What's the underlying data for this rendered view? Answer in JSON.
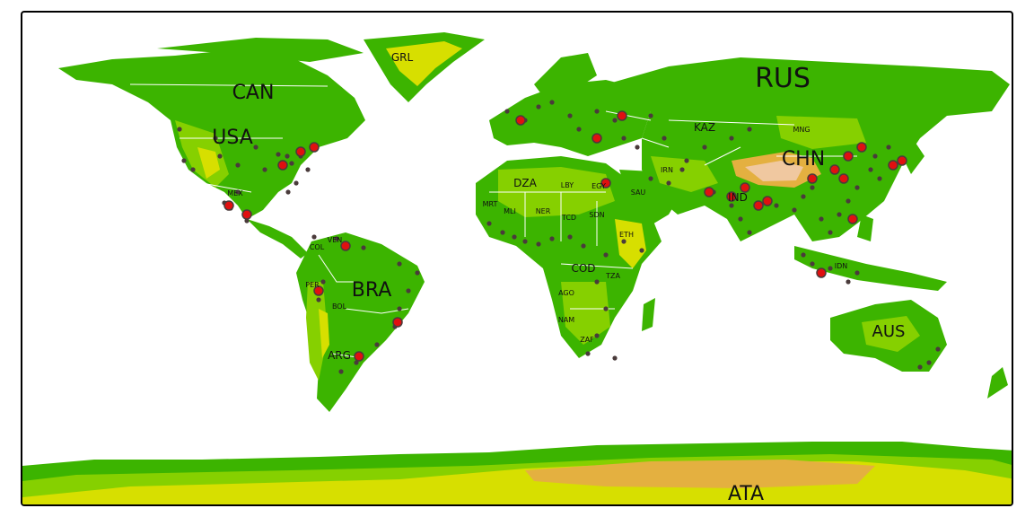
{
  "map": {
    "colors": {
      "ocean": "#ffffff",
      "low_land": "#3cb400",
      "mid_land": "#86d000",
      "high_land": "#d7df00",
      "highest_land": "#e4b040",
      "peaks": "#f0c8a0",
      "city_small": "#4a3b3b",
      "city_large": "#e01010",
      "border": "#ffffff"
    },
    "labels": [
      {
        "text": "CAN",
        "size": "large"
      },
      {
        "text": "USA",
        "size": "large"
      },
      {
        "text": "RUS",
        "size": "xlarge"
      },
      {
        "text": "CHN",
        "size": "large"
      },
      {
        "text": "BRA",
        "size": "large"
      },
      {
        "text": "AUS",
        "size": "medium"
      },
      {
        "text": "ATA",
        "size": "large"
      },
      {
        "text": "GRL",
        "size": "small"
      },
      {
        "text": "KAZ",
        "size": "small"
      },
      {
        "text": "DZA",
        "size": "small"
      },
      {
        "text": "IND",
        "size": "small"
      },
      {
        "text": "COD",
        "size": "small"
      },
      {
        "text": "ARG",
        "size": "small"
      },
      {
        "text": "MEX",
        "size": "tiny"
      },
      {
        "text": "LBY",
        "size": "tiny"
      },
      {
        "text": "SDN",
        "size": "tiny"
      },
      {
        "text": "MNG",
        "size": "tiny"
      },
      {
        "text": "IRN",
        "size": "tiny"
      },
      {
        "text": "SAU",
        "size": "tiny"
      },
      {
        "text": "TCD",
        "size": "tiny"
      },
      {
        "text": "NER",
        "size": "tiny"
      },
      {
        "text": "MLI",
        "size": "tiny"
      },
      {
        "text": "MRT",
        "size": "tiny"
      },
      {
        "text": "AGO",
        "size": "tiny"
      },
      {
        "text": "PER",
        "size": "tiny"
      },
      {
        "text": "BOL",
        "size": "tiny"
      },
      {
        "text": "IDN",
        "size": "tiny"
      },
      {
        "text": "ETH",
        "size": "tiny"
      },
      {
        "text": "TZA",
        "size": "tiny"
      },
      {
        "text": "ZAF",
        "size": "tiny"
      },
      {
        "text": "NAM",
        "size": "tiny"
      },
      {
        "text": "VEN",
        "size": "tiny"
      },
      {
        "text": "COL",
        "size": "tiny"
      },
      {
        "text": "EGY",
        "size": "tiny"
      }
    ]
  }
}
